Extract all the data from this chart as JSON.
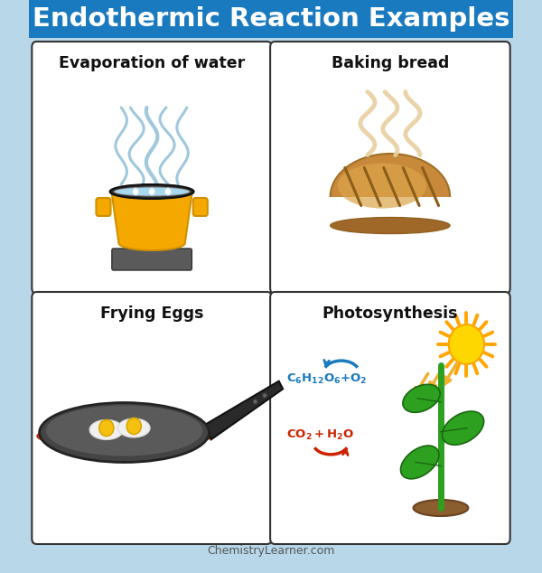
{
  "title": "Endothermic Reaction Examples",
  "title_bg": "#1a7abf",
  "title_color": "#ffffff",
  "bg_color": "#b8d8ea",
  "footer": "ChemistryLearner.com",
  "footer_color": "#555555",
  "labels": [
    "Evaporation of water",
    "Baking bread",
    "Frying Eggs",
    "Photosynthesis"
  ],
  "pot_color": "#f5a800",
  "pot_rim_color": "#2e2e2e",
  "water_color": "#a8d8ee",
  "steam_color": "#90bfd8",
  "stove_color": "#5a5a5a",
  "bread_color": "#c8893a",
  "bread_light": "#dba54a",
  "bread_dark": "#a06820",
  "bread_steam": "#e8cfa0",
  "pan_color": "#555555",
  "pan_inner": "#666666",
  "pan_red": "#dd3311",
  "egg_white": "#f0f0f0",
  "yolk_color": "#f5c010",
  "sun_color": "#FFD700",
  "sun_ray": "#FFA500",
  "arrow_yellow": "#f0b030",
  "plant_green": "#2da020",
  "plant_dark": "#1a6810",
  "soil_color": "#8B5e30",
  "blue_eq": "#1a7abf",
  "red_eq": "#cc2200"
}
